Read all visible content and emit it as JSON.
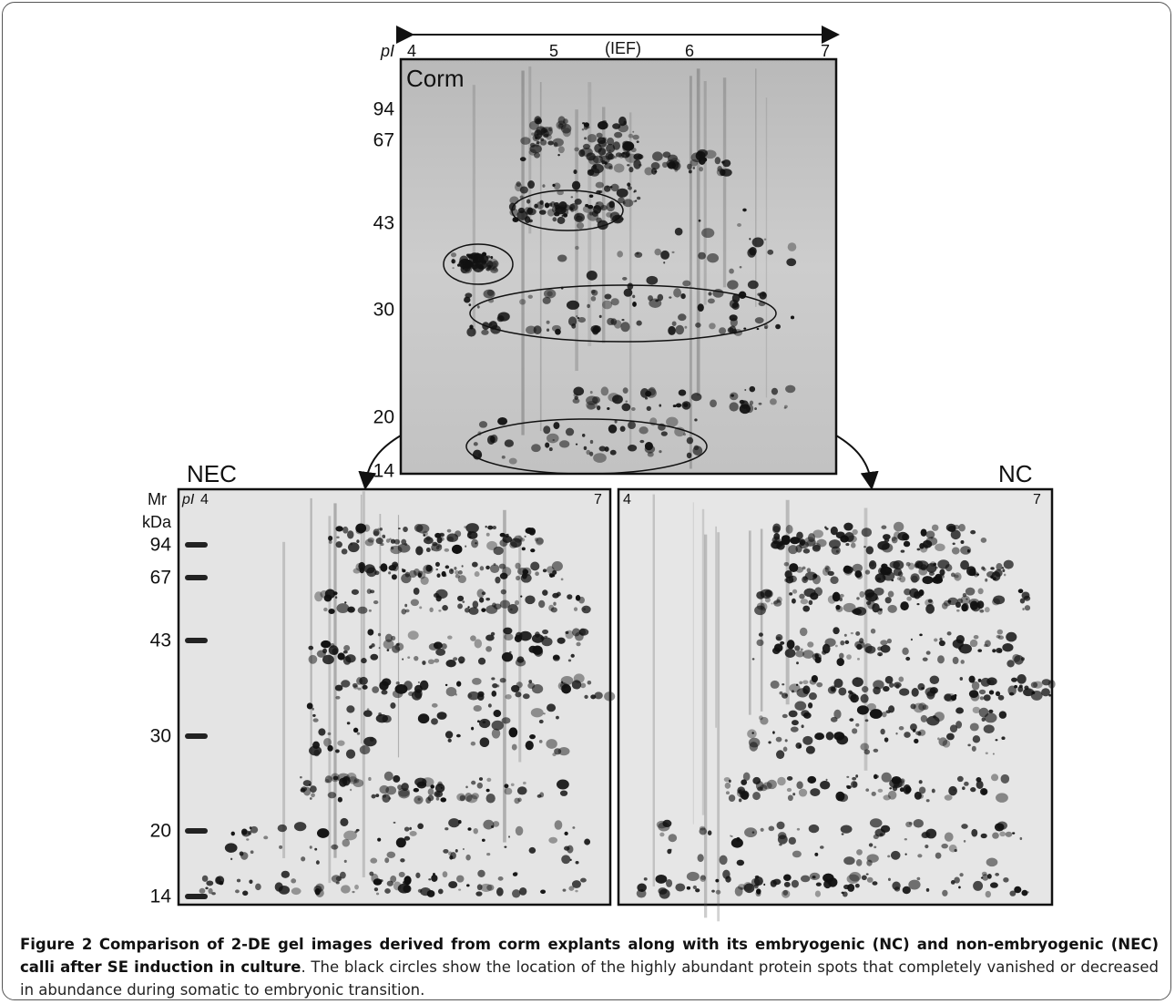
{
  "top_gel": {
    "label": "Corm",
    "pi_label": "pI",
    "pi_ticks": [
      "4",
      "5",
      "6",
      "7"
    ],
    "axis_title": "(IEF)",
    "mr_ticks": [
      "94",
      "67",
      "43",
      "30",
      "20",
      "14"
    ]
  },
  "bottom_left_gel": {
    "label": "NEC",
    "mr_title": "Mr",
    "mr_unit": "kDa",
    "pi_label": "pI",
    "pi_ticks": [
      "4",
      "7"
    ],
    "mr_ticks": [
      "94",
      "67",
      "43",
      "30",
      "20",
      "14"
    ]
  },
  "bottom_right_gel": {
    "label": "NC",
    "pi_ticks": [
      "4",
      "7"
    ]
  },
  "caption": {
    "label": "Figure 2",
    "title": "Comparison of 2-DE gel images derived from corm explants along with its embryogenic (NC) and non-embryogenic (NEC) calli after SE induction in culture",
    "text": ". The black circles show the location of the highly abundant protein spots that completely vanished or decreased in abundance during somatic to embryonic transition."
  }
}
